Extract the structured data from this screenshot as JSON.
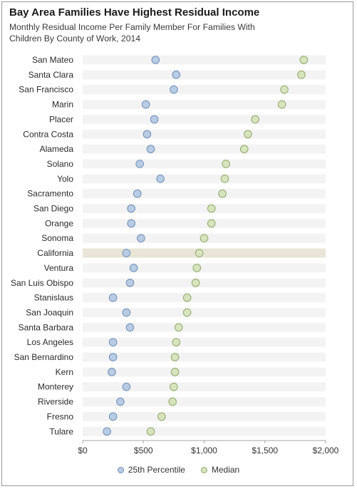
{
  "chart_data": {
    "type": "dot",
    "title": "Bay Area Families Have Highest Residual Income",
    "subtitle": "Monthly Residual Income Per Family Member For Families With Children By County of Work, 2014",
    "categories": [
      "San Mateo",
      "Santa Clara",
      "San Francisco",
      "Marin",
      "Placer",
      "Contra Costa",
      "Alameda",
      "Solano",
      "Yolo",
      "Sacramento",
      "San Diego",
      "Orange",
      "Sonoma",
      "California",
      "Ventura",
      "San Luis Obispo",
      "Stanislaus",
      "San Joaquin",
      "Santa Barbara",
      "Los Angeles",
      "San Bernardino",
      "Kern",
      "Monterey",
      "Riverside",
      "Fresno",
      "Tulare"
    ],
    "highlight_category": "California",
    "series": [
      {
        "name": "25th Percentile",
        "color": "#b8cce4",
        "stroke": "#6f8fb5",
        "values": [
          600,
          770,
          750,
          520,
          590,
          530,
          560,
          470,
          640,
          450,
          400,
          400,
          480,
          360,
          420,
          390,
          250,
          360,
          390,
          250,
          250,
          240,
          360,
          310,
          250,
          200
        ]
      },
      {
        "name": "Median",
        "color": "#d7e4bd",
        "stroke": "#8fa86a",
        "values": [
          1820,
          1800,
          1660,
          1640,
          1420,
          1360,
          1330,
          1180,
          1170,
          1150,
          1060,
          1060,
          1000,
          960,
          940,
          930,
          860,
          860,
          790,
          770,
          760,
          760,
          750,
          740,
          650,
          560
        ]
      }
    ],
    "x_ticks": [
      "$0",
      "$500",
      "$1,000",
      "$1,500",
      "$2,000"
    ],
    "xlim": [
      0,
      2000
    ],
    "legend_position": "bottom",
    "grid": false
  }
}
